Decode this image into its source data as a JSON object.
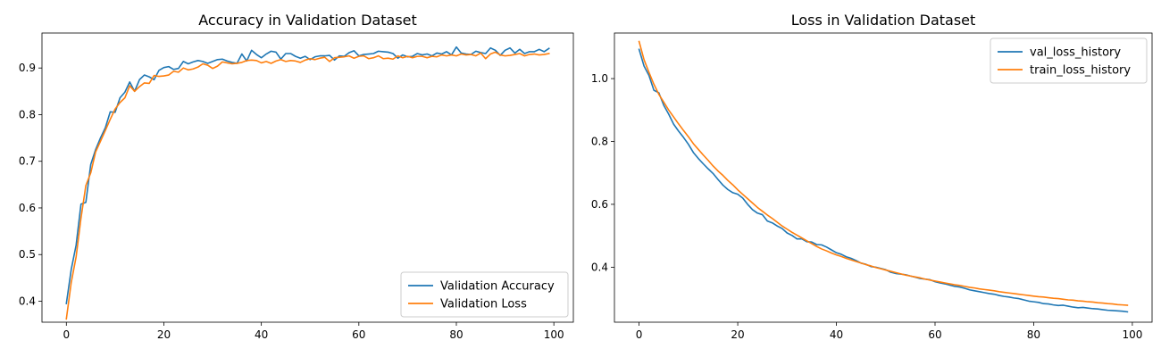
{
  "chart_data": [
    {
      "type": "line",
      "title": "Accuracy in Validation Dataset",
      "xlabel": "",
      "ylabel": "",
      "xlim": [
        -5,
        104
      ],
      "ylim": [
        0.355,
        0.975
      ],
      "xticks": [
        0,
        20,
        40,
        60,
        80,
        100
      ],
      "xtick_labels": [
        "0",
        "20",
        "40",
        "60",
        "80",
        "100"
      ],
      "yticks": [
        0.4,
        0.5,
        0.6,
        0.7,
        0.8,
        0.9
      ],
      "ytick_labels": [
        "0.4",
        "0.5",
        "0.6",
        "0.7",
        "0.8",
        "0.9"
      ],
      "legend_position": "lower-right",
      "x": [
        0,
        1,
        2,
        3,
        4,
        5,
        6,
        7,
        8,
        9,
        10,
        11,
        12,
        13,
        14,
        15,
        16,
        17,
        18,
        19,
        20,
        21,
        22,
        23,
        24,
        25,
        26,
        27,
        28,
        29,
        30,
        31,
        32,
        33,
        34,
        35,
        36,
        37,
        38,
        39,
        40,
        41,
        42,
        43,
        44,
        45,
        46,
        47,
        48,
        49,
        50,
        51,
        52,
        53,
        54,
        55,
        56,
        57,
        58,
        59,
        60,
        61,
        62,
        63,
        64,
        65,
        66,
        67,
        68,
        69,
        70,
        71,
        72,
        73,
        74,
        75,
        76,
        77,
        78,
        79,
        80,
        81,
        82,
        83,
        84,
        85,
        86,
        87,
        88,
        89,
        90,
        91,
        92,
        93,
        94,
        95,
        96,
        97,
        98,
        99
      ],
      "series": [
        {
          "name": "Validation Accuracy",
          "color": "#1f77b4",
          "values": [
            0.395,
            0.468,
            0.52,
            0.608,
            0.612,
            0.693,
            0.725,
            0.75,
            0.772,
            0.806,
            0.805,
            0.836,
            0.848,
            0.87,
            0.85,
            0.875,
            0.885,
            0.881,
            0.875,
            0.895,
            0.901,
            0.903,
            0.897,
            0.899,
            0.914,
            0.909,
            0.913,
            0.916,
            0.914,
            0.91,
            0.914,
            0.918,
            0.919,
            0.915,
            0.912,
            0.91,
            0.93,
            0.915,
            0.938,
            0.929,
            0.922,
            0.93,
            0.936,
            0.934,
            0.919,
            0.931,
            0.931,
            0.925,
            0.921,
            0.925,
            0.918,
            0.924,
            0.926,
            0.926,
            0.927,
            0.917,
            0.926,
            0.925,
            0.933,
            0.937,
            0.926,
            0.929,
            0.93,
            0.931,
            0.936,
            0.935,
            0.934,
            0.931,
            0.921,
            0.928,
            0.924,
            0.925,
            0.931,
            0.928,
            0.93,
            0.926,
            0.932,
            0.93,
            0.935,
            0.928,
            0.945,
            0.932,
            0.93,
            0.929,
            0.936,
            0.933,
            0.931,
            0.943,
            0.938,
            0.927,
            0.938,
            0.943,
            0.932,
            0.94,
            0.931,
            0.935,
            0.935,
            0.94,
            0.935,
            0.942
          ]
        },
        {
          "name": "Validation Loss",
          "color": "#ff7f0e",
          "values": [
            0.362,
            0.44,
            0.495,
            0.578,
            0.648,
            0.675,
            0.72,
            0.743,
            0.766,
            0.79,
            0.812,
            0.826,
            0.836,
            0.862,
            0.85,
            0.86,
            0.868,
            0.867,
            0.884,
            0.882,
            0.883,
            0.885,
            0.893,
            0.891,
            0.9,
            0.896,
            0.898,
            0.902,
            0.909,
            0.906,
            0.899,
            0.904,
            0.913,
            0.911,
            0.909,
            0.91,
            0.912,
            0.916,
            0.917,
            0.916,
            0.911,
            0.914,
            0.91,
            0.915,
            0.918,
            0.914,
            0.916,
            0.915,
            0.912,
            0.917,
            0.92,
            0.918,
            0.921,
            0.923,
            0.914,
            0.922,
            0.923,
            0.924,
            0.926,
            0.921,
            0.925,
            0.926,
            0.92,
            0.922,
            0.926,
            0.92,
            0.921,
            0.919,
            0.926,
            0.922,
            0.925,
            0.922,
            0.925,
            0.925,
            0.922,
            0.925,
            0.924,
            0.928,
            0.926,
            0.928,
            0.926,
            0.93,
            0.928,
            0.929,
            0.926,
            0.932,
            0.92,
            0.93,
            0.934,
            0.928,
            0.926,
            0.927,
            0.929,
            0.931,
            0.926,
            0.929,
            0.93,
            0.928,
            0.929,
            0.931
          ]
        }
      ]
    },
    {
      "type": "line",
      "title": "Loss in Validation Dataset",
      "xlabel": "",
      "ylabel": "",
      "xlim": [
        -5,
        104
      ],
      "ylim": [
        0.225,
        1.145
      ],
      "xticks": [
        0,
        20,
        40,
        60,
        80,
        100
      ],
      "xtick_labels": [
        "0",
        "20",
        "40",
        "60",
        "80",
        "100"
      ],
      "yticks": [
        0.4,
        0.6,
        0.8,
        1.0
      ],
      "ytick_labels": [
        "0.4",
        "0.6",
        "0.8",
        "1.0"
      ],
      "legend_position": "top-right",
      "x": [
        0,
        1,
        2,
        3,
        4,
        5,
        6,
        7,
        8,
        9,
        10,
        11,
        12,
        13,
        14,
        15,
        16,
        17,
        18,
        19,
        20,
        21,
        22,
        23,
        24,
        25,
        26,
        27,
        28,
        29,
        30,
        31,
        32,
        33,
        34,
        35,
        36,
        37,
        38,
        39,
        40,
        41,
        42,
        43,
        44,
        45,
        46,
        47,
        48,
        49,
        50,
        51,
        52,
        53,
        54,
        55,
        56,
        57,
        58,
        59,
        60,
        61,
        62,
        63,
        64,
        65,
        66,
        67,
        68,
        69,
        70,
        71,
        72,
        73,
        74,
        75,
        76,
        77,
        78,
        79,
        80,
        81,
        82,
        83,
        84,
        85,
        86,
        87,
        88,
        89,
        90,
        91,
        92,
        93,
        94,
        95,
        96,
        97,
        98,
        99
      ],
      "series": [
        {
          "name": "val_loss_history",
          "color": "#1f77b4",
          "values": [
            1.093,
            1.04,
            1.01,
            0.963,
            0.955,
            0.915,
            0.887,
            0.855,
            0.833,
            0.813,
            0.791,
            0.765,
            0.746,
            0.729,
            0.713,
            0.698,
            0.679,
            0.661,
            0.647,
            0.637,
            0.632,
            0.62,
            0.6,
            0.583,
            0.572,
            0.567,
            0.547,
            0.541,
            0.531,
            0.523,
            0.509,
            0.501,
            0.49,
            0.49,
            0.481,
            0.48,
            0.472,
            0.471,
            0.464,
            0.455,
            0.446,
            0.441,
            0.433,
            0.428,
            0.421,
            0.413,
            0.409,
            0.402,
            0.4,
            0.396,
            0.392,
            0.384,
            0.38,
            0.378,
            0.376,
            0.372,
            0.368,
            0.364,
            0.362,
            0.36,
            0.354,
            0.35,
            0.347,
            0.343,
            0.339,
            0.337,
            0.333,
            0.328,
            0.325,
            0.322,
            0.319,
            0.316,
            0.314,
            0.31,
            0.307,
            0.305,
            0.302,
            0.3,
            0.296,
            0.292,
            0.29,
            0.288,
            0.284,
            0.283,
            0.28,
            0.278,
            0.279,
            0.276,
            0.273,
            0.271,
            0.272,
            0.27,
            0.268,
            0.267,
            0.265,
            0.263,
            0.262,
            0.261,
            0.26,
            0.258
          ]
        },
        {
          "name": "train_loss_history",
          "color": "#ff7f0e",
          "values": [
            1.118,
            1.06,
            1.02,
            0.982,
            0.95,
            0.925,
            0.9,
            0.878,
            0.856,
            0.835,
            0.815,
            0.793,
            0.775,
            0.757,
            0.74,
            0.722,
            0.706,
            0.692,
            0.676,
            0.662,
            0.646,
            0.632,
            0.618,
            0.604,
            0.59,
            0.578,
            0.566,
            0.555,
            0.543,
            0.531,
            0.521,
            0.511,
            0.502,
            0.493,
            0.484,
            0.475,
            0.466,
            0.458,
            0.452,
            0.445,
            0.439,
            0.434,
            0.428,
            0.423,
            0.418,
            0.413,
            0.408,
            0.404,
            0.399,
            0.395,
            0.391,
            0.387,
            0.383,
            0.379,
            0.375,
            0.372,
            0.369,
            0.366,
            0.362,
            0.359,
            0.356,
            0.353,
            0.35,
            0.347,
            0.344,
            0.342,
            0.339,
            0.336,
            0.334,
            0.331,
            0.329,
            0.327,
            0.325,
            0.322,
            0.32,
            0.318,
            0.316,
            0.314,
            0.312,
            0.31,
            0.308,
            0.306,
            0.305,
            0.303,
            0.301,
            0.3,
            0.298,
            0.296,
            0.295,
            0.293,
            0.292,
            0.29,
            0.289,
            0.287,
            0.286,
            0.284,
            0.283,
            0.281,
            0.28,
            0.279
          ]
        }
      ]
    }
  ]
}
